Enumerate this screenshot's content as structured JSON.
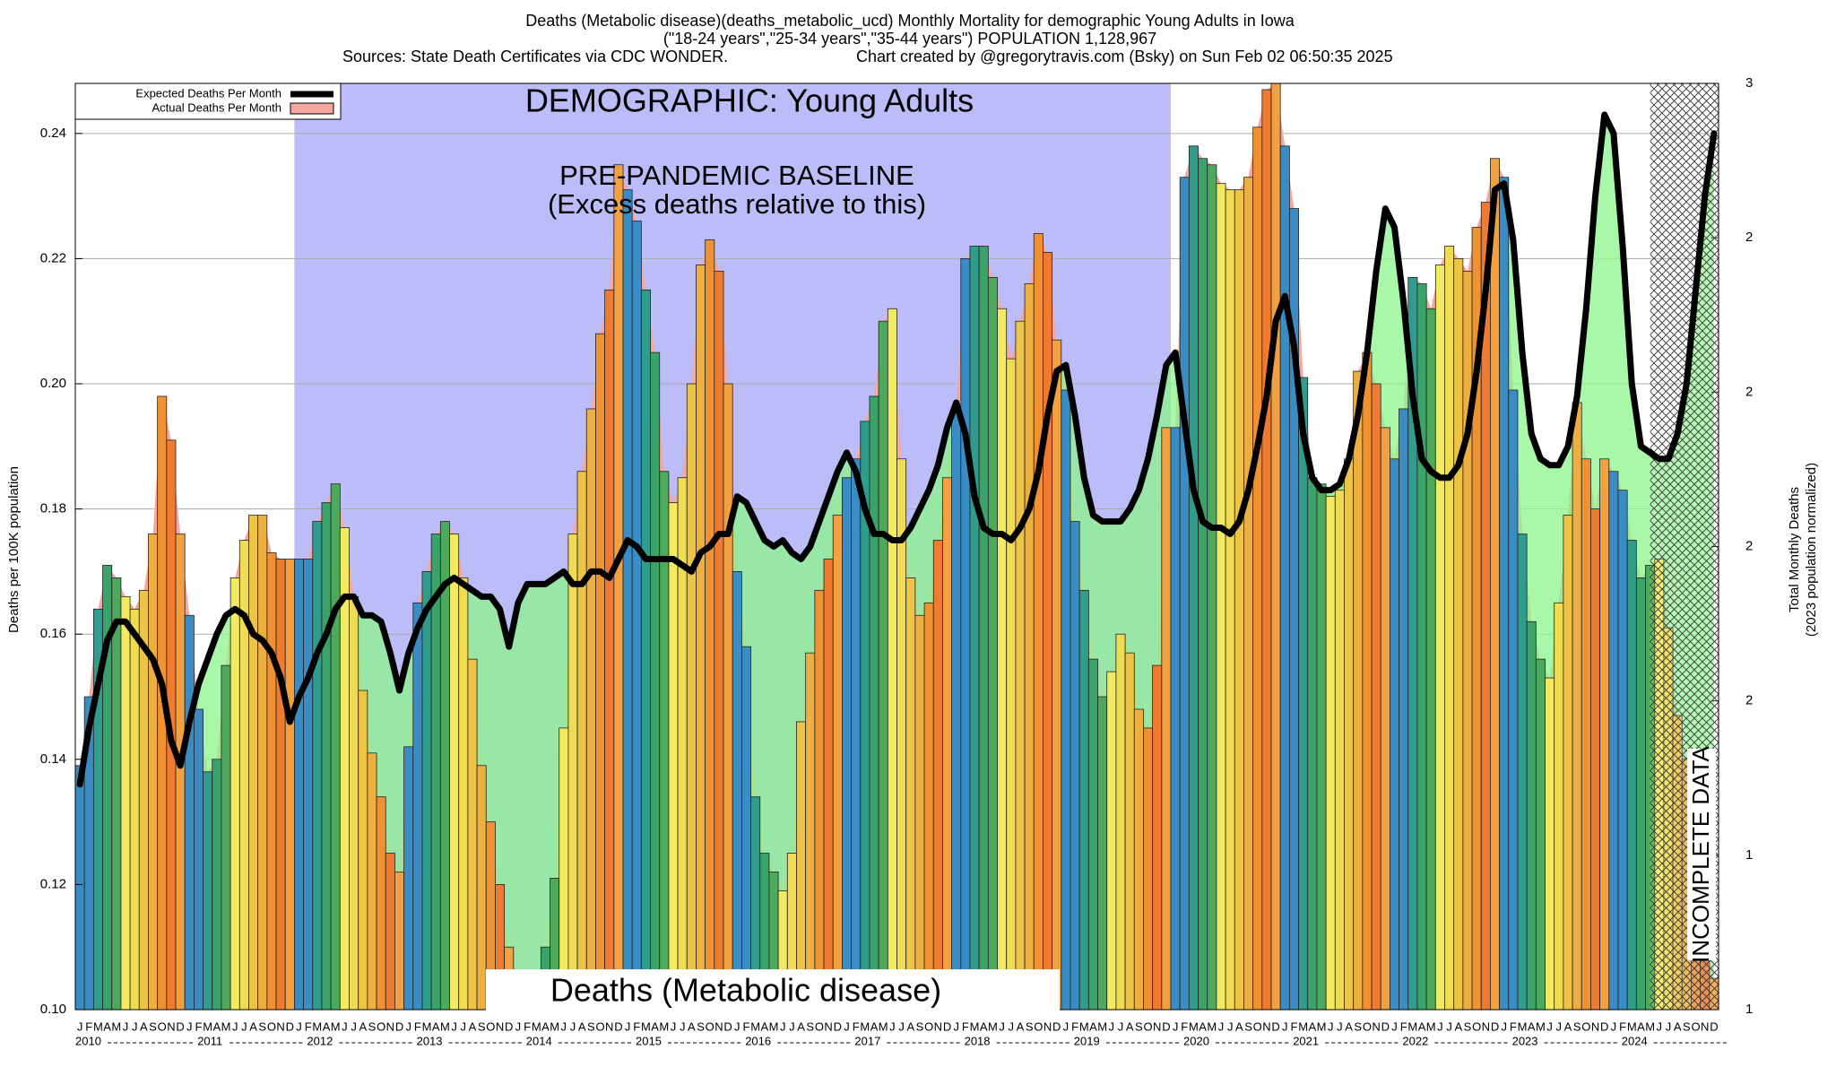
{
  "chart_data": {
    "type": "bar",
    "title": "Deaths (Metabolic disease)(deaths_metabolic_ucd) Monthly Mortality for demographic Young Adults in Iowa",
    "subtitle": "(\"18-24 years\",\"25-34 years\",\"35-44 years\") POPULATION 1,128,967",
    "source": "Sources: State Death Certificates via CDC WONDER.",
    "credit": "Chart created by @gregorytravis.com (Bsky) on Sun Feb 02 06:50:35 2025",
    "ylabel": "Deaths per 100K population",
    "y2label": "Total Monthly Deaths",
    "y2label_note": "(2023 population normalized)",
    "annotations": {
      "demographic": "DEMOGRAPHIC: Young Adults",
      "baseline": "PRE-PANDEMIC BASELINE",
      "baseline_note": "(Excess deaths relative to this)",
      "cause": "Deaths (Metabolic disease)",
      "incomplete": "INCOMPLETE DATA"
    },
    "categories": [
      "J",
      "F",
      "M",
      "A",
      "M",
      "J",
      "J",
      "A",
      "S",
      "O",
      "N",
      "D",
      "J",
      "F",
      "M",
      "A",
      "M",
      "J",
      "J",
      "A",
      "S",
      "O",
      "N",
      "D",
      "J",
      "F",
      "M",
      "A",
      "M",
      "J",
      "J",
      "A",
      "S",
      "O",
      "N",
      "D",
      "J",
      "F",
      "M",
      "A",
      "M",
      "J",
      "J",
      "A",
      "S",
      "O",
      "N",
      "D",
      "J",
      "F",
      "M",
      "A",
      "M",
      "J",
      "J",
      "A",
      "S",
      "O",
      "N",
      "D",
      "J",
      "F",
      "M",
      "A",
      "M",
      "J",
      "J",
      "A",
      "S",
      "O",
      "N",
      "D",
      "J",
      "F",
      "M",
      "A",
      "M",
      "J",
      "J",
      "A",
      "S",
      "O",
      "N",
      "D",
      "J",
      "F",
      "M",
      "A",
      "M",
      "J",
      "J",
      "A",
      "S",
      "O",
      "N",
      "D",
      "J",
      "F",
      "M",
      "A",
      "M",
      "J",
      "J",
      "A",
      "S",
      "O",
      "N",
      "D",
      "J",
      "F",
      "M",
      "A",
      "M",
      "J",
      "J",
      "A",
      "S",
      "O",
      "N",
      "D",
      "J",
      "F",
      "M",
      "A",
      "M",
      "J",
      "J",
      "A",
      "S",
      "O",
      "N",
      "D",
      "J",
      "F",
      "M",
      "A",
      "M",
      "J",
      "J",
      "A",
      "S",
      "O",
      "N",
      "D",
      "J",
      "F",
      "M",
      "A",
      "M",
      "J",
      "J",
      "A",
      "S",
      "O",
      "N",
      "D",
      "J",
      "F",
      "M",
      "A",
      "M",
      "J",
      "J",
      "A",
      "S",
      "O",
      "N",
      "D",
      "J",
      "F",
      "M",
      "A",
      "M",
      "J",
      "J",
      "A",
      "S",
      "O",
      "N",
      "D"
    ],
    "years": [
      "2010",
      "2011",
      "2012",
      "2013",
      "2014",
      "2015",
      "2016",
      "2017",
      "2018",
      "2019",
      "2020",
      "2021",
      "2022",
      "2023",
      "2024"
    ],
    "series": [
      {
        "name": "Expected Deaths Per Month",
        "color": "#000000",
        "values": [
          0.136,
          0.145,
          0.152,
          0.159,
          0.162,
          0.162,
          0.16,
          0.158,
          0.156,
          0.152,
          0.143,
          0.139,
          0.146,
          0.152,
          0.156,
          0.16,
          0.163,
          0.164,
          0.163,
          0.16,
          0.159,
          0.157,
          0.153,
          0.146,
          0.15,
          0.153,
          0.157,
          0.16,
          0.164,
          0.166,
          0.166,
          0.163,
          0.163,
          0.162,
          0.157,
          0.151,
          0.157,
          0.161,
          0.164,
          0.166,
          0.168,
          0.169,
          0.168,
          0.167,
          0.166,
          0.166,
          0.164,
          0.158,
          0.165,
          0.168,
          0.168,
          0.168,
          0.169,
          0.17,
          0.168,
          0.168,
          0.17,
          0.17,
          0.169,
          0.172,
          0.175,
          0.174,
          0.172,
          0.172,
          0.172,
          0.172,
          0.171,
          0.17,
          0.173,
          0.174,
          0.176,
          0.176,
          0.182,
          0.181,
          0.178,
          0.175,
          0.174,
          0.175,
          0.173,
          0.172,
          0.174,
          0.178,
          0.182,
          0.186,
          0.189,
          0.186,
          0.18,
          0.176,
          0.176,
          0.175,
          0.175,
          0.177,
          0.18,
          0.183,
          0.187,
          0.193,
          0.197,
          0.192,
          0.182,
          0.177,
          0.176,
          0.176,
          0.175,
          0.177,
          0.18,
          0.186,
          0.195,
          0.202,
          0.203,
          0.195,
          0.185,
          0.179,
          0.178,
          0.178,
          0.178,
          0.18,
          0.183,
          0.188,
          0.195,
          0.203,
          0.205,
          0.194,
          0.183,
          0.178,
          0.177,
          0.177,
          0.176,
          0.178,
          0.183,
          0.19,
          0.198,
          0.21,
          0.214,
          0.206,
          0.192,
          0.185,
          0.183,
          0.183,
          0.184,
          0.188,
          0.195,
          0.205,
          0.218,
          0.228,
          0.225,
          0.213,
          0.198,
          0.188,
          0.186,
          0.185,
          0.185,
          0.187,
          0.192,
          0.202,
          0.215,
          0.231,
          0.232,
          0.223,
          0.205,
          0.192,
          0.188,
          0.187,
          0.187,
          0.19,
          0.198,
          0.212,
          0.23,
          0.243,
          0.24,
          0.222,
          0.2,
          0.19,
          0.189,
          0.188,
          0.188,
          0.192,
          0.2,
          0.215,
          0.23,
          0.24
        ]
      },
      {
        "name": "Actual Deaths Per Month",
        "color": "#f4a8a0",
        "values": [
          0.139,
          0.15,
          0.164,
          0.171,
          0.169,
          0.166,
          0.164,
          0.167,
          0.176,
          0.198,
          0.191,
          0.176,
          0.163,
          0.148,
          0.138,
          0.14,
          0.155,
          0.169,
          0.175,
          0.179,
          0.179,
          0.173,
          0.172,
          0.172,
          0.172,
          0.172,
          0.178,
          0.181,
          0.184,
          0.177,
          0.166,
          0.151,
          0.141,
          0.134,
          0.125,
          0.122,
          0.142,
          0.165,
          0.17,
          0.176,
          0.178,
          0.176,
          0.169,
          0.156,
          0.139,
          0.13,
          0.12,
          0.11,
          0.102,
          0.101,
          0.104,
          0.11,
          0.121,
          0.145,
          0.176,
          0.186,
          0.196,
          0.208,
          0.215,
          0.235,
          0.231,
          0.226,
          0.215,
          0.205,
          0.186,
          0.181,
          0.185,
          0.2,
          0.219,
          0.223,
          0.218,
          0.2,
          0.17,
          0.158,
          0.134,
          0.125,
          0.122,
          0.119,
          0.125,
          0.146,
          0.157,
          0.167,
          0.172,
          0.179,
          0.185,
          0.188,
          0.194,
          0.198,
          0.21,
          0.212,
          0.188,
          0.169,
          0.163,
          0.165,
          0.175,
          0.185,
          0.196,
          0.22,
          0.222,
          0.222,
          0.217,
          0.212,
          0.204,
          0.21,
          0.216,
          0.224,
          0.221,
          0.207,
          0.199,
          0.178,
          0.167,
          0.156,
          0.15,
          0.154,
          0.16,
          0.157,
          0.148,
          0.145,
          0.155,
          0.193,
          0.193,
          0.233,
          0.238,
          0.236,
          0.235,
          0.232,
          0.231,
          0.231,
          0.233,
          0.241,
          0.247,
          0.248,
          0.238,
          0.228,
          0.201,
          0.185,
          0.184,
          0.182,
          0.183,
          0.188,
          0.202,
          0.205,
          0.2,
          0.193,
          0.188,
          0.196,
          0.217,
          0.216,
          0.212,
          0.219,
          0.222,
          0.22,
          0.218,
          0.225,
          0.229,
          0.236,
          0.233,
          0.199,
          0.176,
          0.162,
          0.156,
          0.153,
          0.165,
          0.179,
          0.197,
          0.188,
          0.18,
          0.188,
          0.186,
          0.183,
          0.175,
          0.169,
          0.171,
          0.172,
          0.161,
          0.147,
          0.14,
          0.125,
          0.112,
          0.105
        ]
      }
    ],
    "month_colors": [
      "#3a8cc4",
      "#3a8cc4",
      "#2f9c8c",
      "#3aa36a",
      "#4daa5c",
      "#f2ea60",
      "#f0dc52",
      "#eec446",
      "#edb040",
      "#f09232",
      "#f07a30",
      "#f2a040"
    ],
    "shortfall_color": "#8cf58c",
    "baseline_color": "#bcbcf8",
    "ylim": [
      0.1,
      0.248
    ],
    "yticks": [
      {
        "value": 0.1,
        "label": "0.10"
      },
      0.12,
      0.14,
      0.16,
      0.18,
      {
        "value": 0.2,
        "label": "0.20"
      },
      0.22,
      0.24
    ],
    "y2lim": [
      1.2,
      2.7
    ],
    "y2ticks": [
      {
        "value": 2.7,
        "label": "3"
      },
      {
        "value": 2.45,
        "label": "2"
      },
      {
        "value": 2.2,
        "label": "2"
      },
      {
        "value": 1.95,
        "label": "2"
      },
      {
        "value": 1.7,
        "label": "2"
      },
      {
        "value": 1.45,
        "label": "1"
      },
      {
        "value": 1.2,
        "label": "1"
      }
    ],
    "grid": true,
    "legend": "upper left"
  }
}
